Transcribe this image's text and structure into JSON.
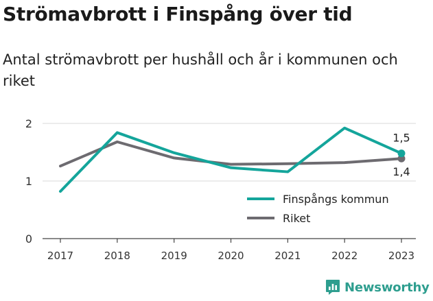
{
  "title": "Strömavbrott i Finspång över tid",
  "subtitle": "Antal strömavbrott per hushåll och år i kommunen och riket",
  "brand": {
    "name": "Newsworthy",
    "color": "#2e9e8f"
  },
  "chart_data": {
    "type": "line",
    "x": [
      "2017",
      "2018",
      "2019",
      "2020",
      "2021",
      "2022",
      "2023"
    ],
    "ylim": [
      0,
      2
    ],
    "yticks": [
      "0",
      "1",
      "2"
    ],
    "grid": true,
    "legend_position": "bottom-right",
    "series": [
      {
        "name": "Finspångs kommun",
        "color": "#14a59b",
        "values": [
          0.82,
          1.84,
          1.49,
          1.23,
          1.16,
          1.92,
          1.48
        ],
        "end_label": "1,5"
      },
      {
        "name": "Riket",
        "color": "#6d6b70",
        "values": [
          1.26,
          1.68,
          1.4,
          1.29,
          1.3,
          1.32,
          1.39
        ],
        "end_label": "1,4"
      }
    ]
  }
}
